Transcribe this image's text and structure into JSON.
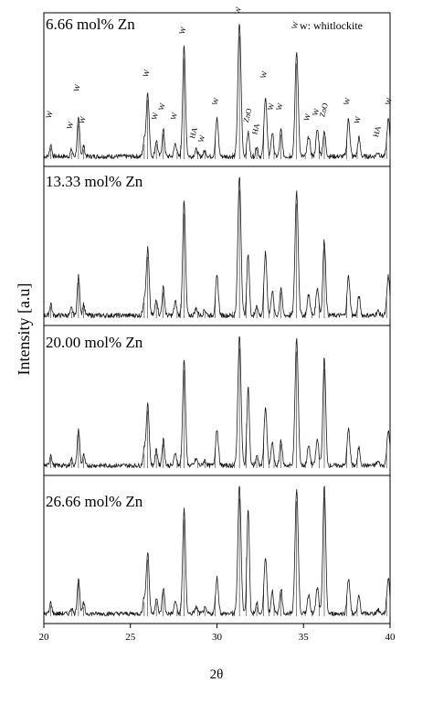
{
  "chart_data": {
    "type": "line",
    "xlabel": "2θ",
    "ylabel": "Intensity [a.u]",
    "xlim": [
      20,
      40
    ],
    "x_ticks": [
      20,
      25,
      30,
      35,
      40
    ],
    "legend_note": "w: whitlockite",
    "peak_labels": [
      {
        "x": 20.4,
        "text": "W",
        "y": 0.28
      },
      {
        "x": 21.6,
        "text": "W",
        "y": 0.2
      },
      {
        "x": 22.0,
        "text": "W",
        "y": 0.48
      },
      {
        "x": 22.3,
        "text": "W",
        "y": 0.24
      },
      {
        "x": 26.0,
        "text": "W",
        "y": 0.59
      },
      {
        "x": 26.5,
        "text": "W",
        "y": 0.27
      },
      {
        "x": 26.9,
        "text": "W",
        "y": 0.34
      },
      {
        "x": 27.6,
        "text": "W",
        "y": 0.27
      },
      {
        "x": 28.1,
        "text": "W",
        "y": 0.91
      },
      {
        "x": 28.7,
        "text": "HA",
        "y": 0.13
      },
      {
        "x": 29.2,
        "text": "W",
        "y": 0.1
      },
      {
        "x": 30.0,
        "text": "W",
        "y": 0.38
      },
      {
        "x": 31.3,
        "text": "W",
        "y": 1.06
      },
      {
        "x": 31.8,
        "text": "ZnO",
        "y": 0.25
      },
      {
        "x": 32.3,
        "text": "HA",
        "y": 0.16
      },
      {
        "x": 32.8,
        "text": "W",
        "y": 0.58
      },
      {
        "x": 33.2,
        "text": "W",
        "y": 0.34
      },
      {
        "x": 33.7,
        "text": "W",
        "y": 0.34
      },
      {
        "x": 34.6,
        "text": "W",
        "y": 0.95
      },
      {
        "x": 35.3,
        "text": "W",
        "y": 0.26
      },
      {
        "x": 35.8,
        "text": "W",
        "y": 0.3
      },
      {
        "x": 36.2,
        "text": "ZnO",
        "y": 0.29
      },
      {
        "x": 37.6,
        "text": "W",
        "y": 0.38
      },
      {
        "x": 38.2,
        "text": "W",
        "y": 0.24
      },
      {
        "x": 39.3,
        "text": "HA",
        "y": 0.14
      },
      {
        "x": 40.0,
        "text": "W",
        "y": 0.38
      }
    ],
    "reference_sticks": [
      20.4,
      21.6,
      22.0,
      22.3,
      25.8,
      26.0,
      26.5,
      26.9,
      27.7,
      27.9,
      28.1,
      28.9,
      29.3,
      29.9,
      30.9,
      31.0,
      31.3,
      31.7,
      32.1,
      32.3,
      32.7,
      33.0,
      33.3,
      33.7,
      34.2,
      34.6,
      35.1,
      35.5,
      35.9,
      36.2,
      37.5,
      37.8,
      38.1,
      39.8,
      40.0
    ],
    "peaks": [
      [
        20.4,
        0.09,
        0.06
      ],
      [
        21.6,
        0.05,
        0.06
      ],
      [
        22.0,
        0.28,
        0.07
      ],
      [
        22.3,
        0.08,
        0.06
      ],
      [
        25.8,
        0.12,
        0.07
      ],
      [
        26.0,
        0.48,
        0.08
      ],
      [
        26.5,
        0.12,
        0.07
      ],
      [
        26.9,
        0.2,
        0.07
      ],
      [
        27.6,
        0.1,
        0.07
      ],
      [
        28.1,
        0.82,
        0.08
      ],
      [
        28.8,
        0.05,
        0.08
      ],
      [
        29.3,
        0.04,
        0.08
      ],
      [
        30.0,
        0.28,
        0.08
      ],
      [
        31.3,
        1.0,
        0.09
      ],
      [
        31.8,
        0.18,
        0.07
      ],
      [
        32.3,
        0.08,
        0.06
      ],
      [
        32.8,
        0.45,
        0.08
      ],
      [
        33.2,
        0.18,
        0.07
      ],
      [
        33.7,
        0.2,
        0.07
      ],
      [
        34.6,
        0.78,
        0.09
      ],
      [
        35.3,
        0.15,
        0.08
      ],
      [
        35.8,
        0.2,
        0.08
      ],
      [
        36.2,
        0.18,
        0.08
      ],
      [
        37.6,
        0.28,
        0.08
      ],
      [
        38.2,
        0.14,
        0.07
      ],
      [
        39.3,
        0.03,
        0.08
      ],
      [
        39.9,
        0.28,
        0.08
      ]
    ],
    "series": [
      {
        "name": "6.66 mol% Zn",
        "scale": {
          "22.0": 1.0,
          "31.3": 1.0,
          "36.2": 1.0,
          "34.6": 1.0
        }
      },
      {
        "name": "13.33 mol% Zn",
        "scale": {
          "31.3": 1.0,
          "31.8": 2.5,
          "36.2": 3.0,
          "34.6": 1.15,
          "22.0": 1.4
        }
      },
      {
        "name": "20.00 mol% Zn",
        "scale": {
          "31.3": 1.0,
          "31.8": 3.4,
          "36.2": 4.6,
          "34.6": 1.25,
          "22.0": 1.3
        }
      },
      {
        "name": "26.66 mol% Zn",
        "scale": {
          "31.3": 1.0,
          "31.8": 4.6,
          "36.2": 5.6,
          "34.6": 1.25,
          "22.0": 1.2
        }
      }
    ]
  }
}
